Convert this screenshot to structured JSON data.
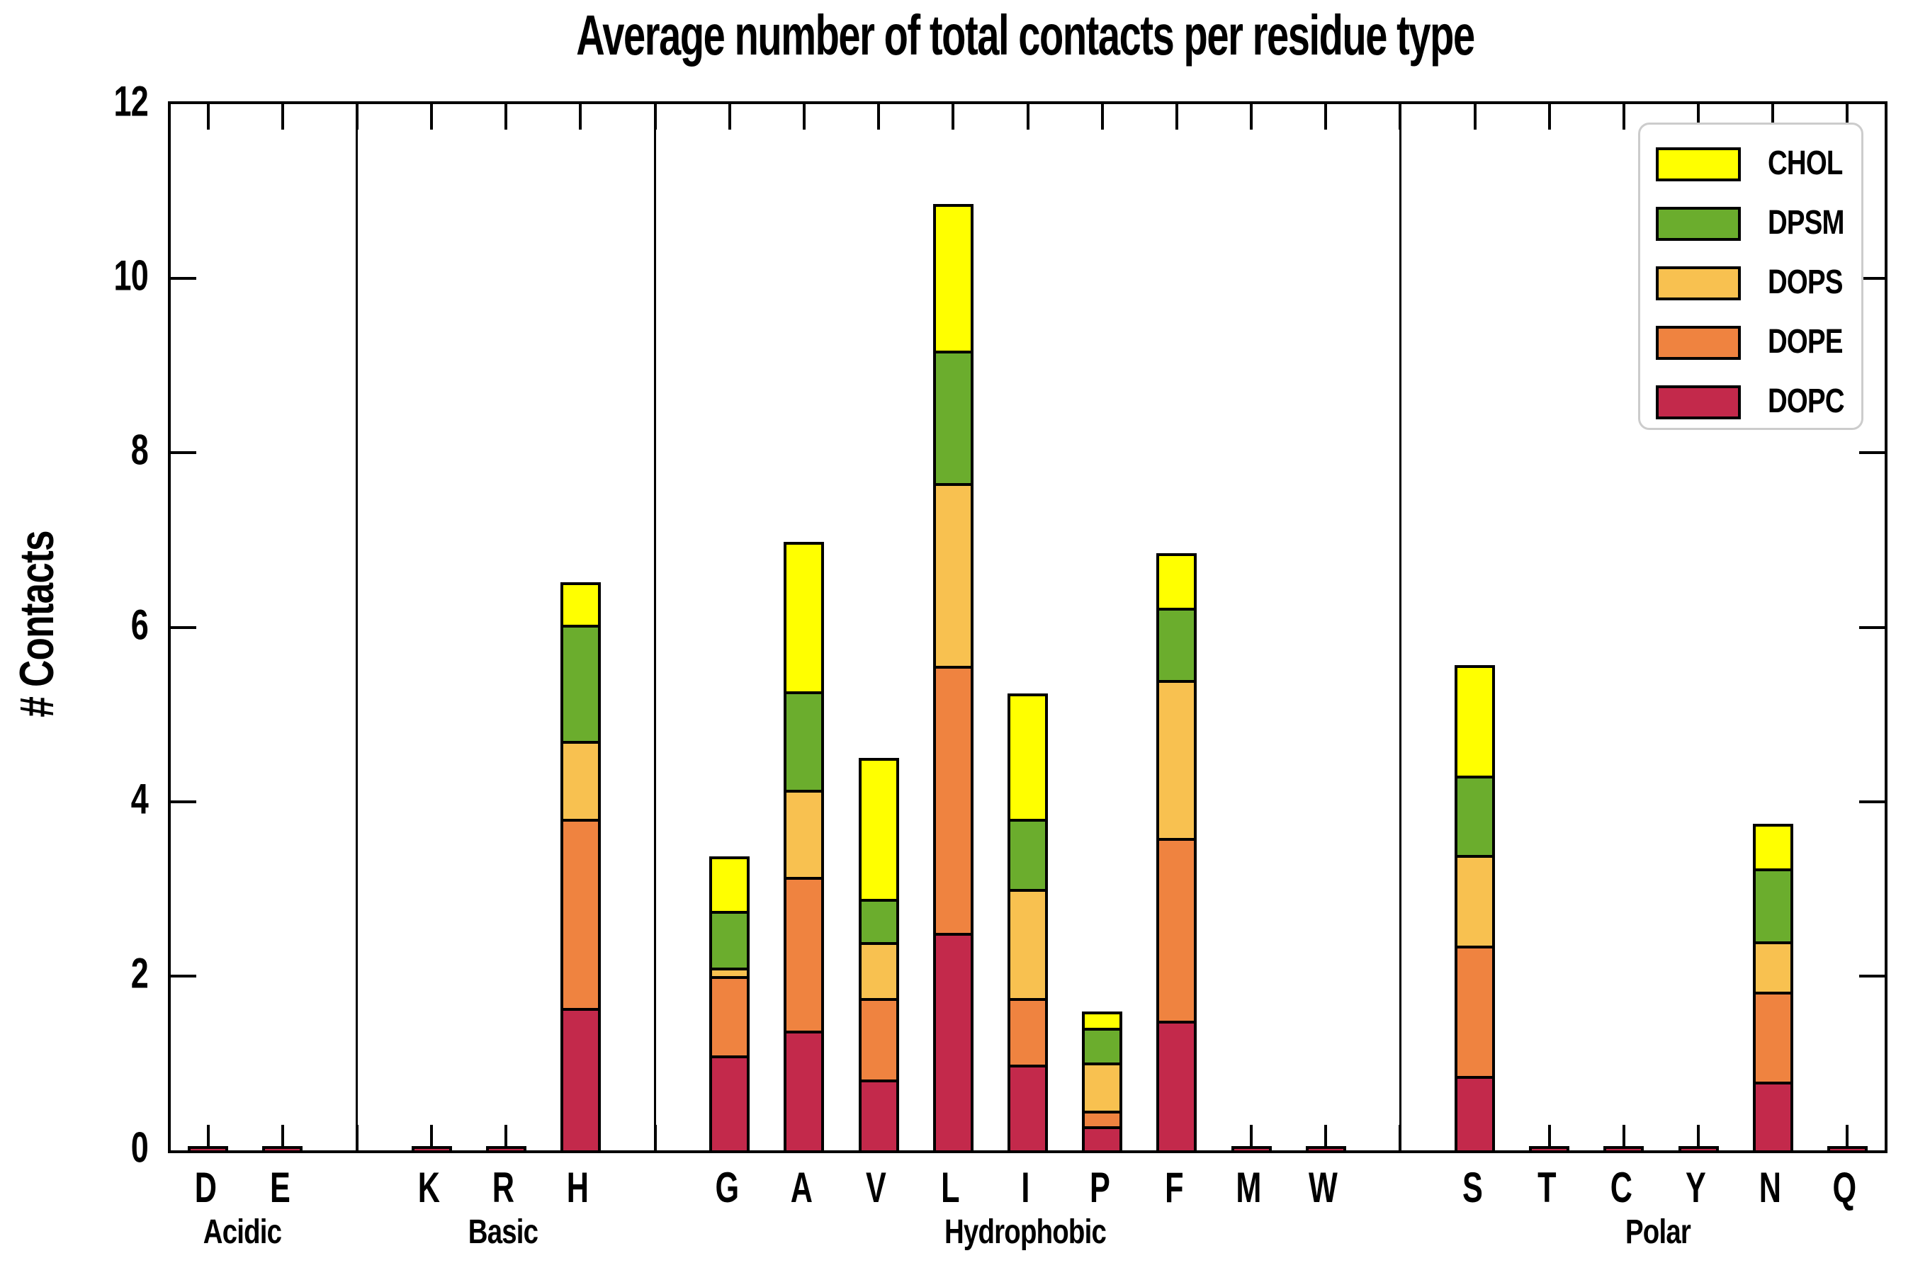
{
  "title": "Average number of total contacts per residue type",
  "axes": {
    "ylabel": "# Contacts",
    "ylim": [
      0,
      12
    ],
    "yticks": [
      "0",
      "2",
      "4",
      "6",
      "8",
      "10",
      "12"
    ],
    "group_labels": [
      "Acidic",
      "Basic",
      "Hydrophobic",
      "Polar"
    ]
  },
  "legend": {
    "entries": [
      {
        "label": "CHOL",
        "color": "#FFFF00"
      },
      {
        "label": "DPSM",
        "color": "#6BAD2D"
      },
      {
        "label": "DOPS",
        "color": "#F8C150"
      },
      {
        "label": "DOPE",
        "color": "#EF8340"
      },
      {
        "label": "DOPC",
        "color": "#C3294B"
      }
    ],
    "border_color": "#CCCCCC"
  },
  "chart_data": {
    "type": "bar",
    "stacked": true,
    "title": "Average number of total contacts per residue type",
    "xlabel": "",
    "ylabel": "# Contacts",
    "ylim": [
      0,
      12
    ],
    "grid": false,
    "legend_position": "upper right",
    "stack_order_bottom_to_top": [
      "DOPC",
      "DOPE",
      "DOPS",
      "DPSM",
      "CHOL"
    ],
    "series_colors": {
      "DOPC": "#C3294B",
      "DOPE": "#EF8340",
      "DOPS": "#F8C150",
      "DPSM": "#6BAD2D",
      "CHOL": "#FFFF00"
    },
    "groups": [
      {
        "label": "Acidic",
        "residues": [
          "D",
          "E"
        ]
      },
      {
        "label": "Basic",
        "residues": [
          "K",
          "R",
          "H"
        ]
      },
      {
        "label": "Hydrophobic",
        "residues": [
          "G",
          "A",
          "V",
          "L",
          "I",
          "P",
          "F",
          "M",
          "W"
        ]
      },
      {
        "label": "Polar",
        "residues": [
          "S",
          "T",
          "C",
          "Y",
          "N",
          "Q"
        ]
      }
    ],
    "bars": [
      {
        "residue": "D",
        "group": "Acidic",
        "values": {
          "DOPC": 0.02,
          "DOPE": 0,
          "DOPS": 0,
          "DPSM": 0,
          "CHOL": 0
        },
        "total": 0.02
      },
      {
        "residue": "E",
        "group": "Acidic",
        "values": {
          "DOPC": 0.02,
          "DOPE": 0,
          "DOPS": 0,
          "DPSM": 0,
          "CHOL": 0
        },
        "total": 0.02
      },
      {
        "residue": "K",
        "group": "Basic",
        "values": {
          "DOPC": 0.02,
          "DOPE": 0,
          "DOPS": 0,
          "DPSM": 0,
          "CHOL": 0
        },
        "total": 0.02
      },
      {
        "residue": "R",
        "group": "Basic",
        "values": {
          "DOPC": 0.02,
          "DOPE": 0,
          "DOPS": 0,
          "DPSM": 0,
          "CHOL": 0
        },
        "total": 0.02
      },
      {
        "residue": "H",
        "group": "Basic",
        "values": {
          "DOPC": 1.62,
          "DOPE": 2.17,
          "DOPS": 0.89,
          "DPSM": 1.33,
          "CHOL": 0.47
        },
        "total": 6.48
      },
      {
        "residue": "G",
        "group": "Hydrophobic",
        "values": {
          "DOPC": 1.07,
          "DOPE": 0.91,
          "DOPS": 0.1,
          "DPSM": 0.65,
          "CHOL": 0.61
        },
        "total": 3.34
      },
      {
        "residue": "A",
        "group": "Hydrophobic",
        "values": {
          "DOPC": 1.36,
          "DOPE": 1.76,
          "DOPS": 1.0,
          "DPSM": 1.13,
          "CHOL": 1.7
        },
        "total": 6.95
      },
      {
        "residue": "V",
        "group": "Hydrophobic",
        "values": {
          "DOPC": 0.8,
          "DOPE": 0.93,
          "DOPS": 0.64,
          "DPSM": 0.5,
          "CHOL": 1.6
        },
        "total": 4.47
      },
      {
        "residue": "L",
        "group": "Hydrophobic",
        "values": {
          "DOPC": 2.48,
          "DOPE": 3.06,
          "DOPS": 2.1,
          "DPSM": 1.52,
          "CHOL": 1.66
        },
        "total": 10.82
      },
      {
        "residue": "I",
        "group": "Hydrophobic",
        "values": {
          "DOPC": 0.97,
          "DOPE": 0.76,
          "DOPS": 1.25,
          "DPSM": 0.81,
          "CHOL": 1.42
        },
        "total": 5.21
      },
      {
        "residue": "P",
        "group": "Hydrophobic",
        "values": {
          "DOPC": 0.26,
          "DOPE": 0.18,
          "DOPS": 0.55,
          "DPSM": 0.4,
          "CHOL": 0.17
        },
        "total": 1.56
      },
      {
        "residue": "F",
        "group": "Hydrophobic",
        "values": {
          "DOPC": 1.47,
          "DOPE": 2.1,
          "DOPS": 1.81,
          "DPSM": 0.83,
          "CHOL": 0.61
        },
        "total": 6.82
      },
      {
        "residue": "M",
        "group": "Hydrophobic",
        "values": {
          "DOPC": 0.02,
          "DOPE": 0,
          "DOPS": 0,
          "DPSM": 0,
          "CHOL": 0
        },
        "total": 0.02
      },
      {
        "residue": "W",
        "group": "Hydrophobic",
        "values": {
          "DOPC": 0.02,
          "DOPE": 0,
          "DOPS": 0,
          "DPSM": 0,
          "CHOL": 0
        },
        "total": 0.02
      },
      {
        "residue": "S",
        "group": "Polar",
        "values": {
          "DOPC": 0.84,
          "DOPE": 1.49,
          "DOPS": 1.04,
          "DPSM": 0.91,
          "CHOL": 1.25
        },
        "total": 5.53
      },
      {
        "residue": "T",
        "group": "Polar",
        "values": {
          "DOPC": 0.02,
          "DOPE": 0,
          "DOPS": 0,
          "DPSM": 0,
          "CHOL": 0
        },
        "total": 0.02
      },
      {
        "residue": "C",
        "group": "Polar",
        "values": {
          "DOPC": 0.02,
          "DOPE": 0,
          "DOPS": 0,
          "DPSM": 0,
          "CHOL": 0
        },
        "total": 0.02
      },
      {
        "residue": "Y",
        "group": "Polar",
        "values": {
          "DOPC": 0.02,
          "DOPE": 0,
          "DOPS": 0,
          "DPSM": 0,
          "CHOL": 0
        },
        "total": 0.02
      },
      {
        "residue": "N",
        "group": "Polar",
        "values": {
          "DOPC": 0.77,
          "DOPE": 1.03,
          "DOPS": 0.58,
          "DPSM": 0.84,
          "CHOL": 0.49
        },
        "total": 3.71
      },
      {
        "residue": "Q",
        "group": "Polar",
        "values": {
          "DOPC": 0.02,
          "DOPE": 0,
          "DOPS": 0,
          "DPSM": 0,
          "CHOL": 0
        },
        "total": 0.02
      }
    ]
  }
}
